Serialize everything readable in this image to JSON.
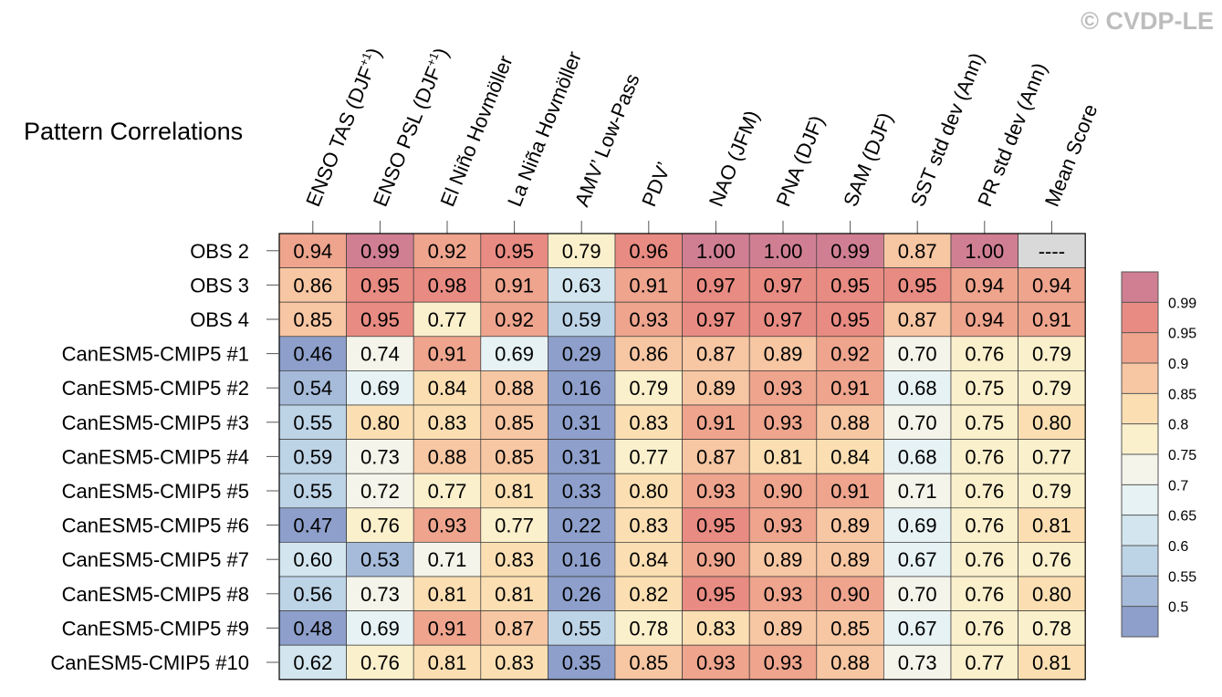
{
  "copyright": "© CVDP-LE",
  "chart_data": {
    "type": "heatmap",
    "title": "Pattern Correlations",
    "columns": [
      {
        "base": "ENSO TAS (DJF",
        "sup": "+1",
        "close": ")"
      },
      {
        "base": "ENSO PSL (DJF",
        "sup": "+1",
        "close": ")"
      },
      {
        "base": "El Niño Hovmöller",
        "sup": "",
        "close": ""
      },
      {
        "base": "La Niña Hovmöller",
        "sup": "",
        "close": ""
      },
      {
        "base": "AMV’ Low-Pass",
        "sup": "",
        "close": ""
      },
      {
        "base": "PDV’",
        "sup": "",
        "close": ""
      },
      {
        "base": "NAO (JFM)",
        "sup": "",
        "close": ""
      },
      {
        "base": "PNA (DJF)",
        "sup": "",
        "close": ""
      },
      {
        "base": "SAM (DJF)",
        "sup": "",
        "close": ""
      },
      {
        "base": "SST std dev (Ann)",
        "sup": "",
        "close": ""
      },
      {
        "base": "PR std dev (Ann)",
        "sup": "",
        "close": ""
      },
      {
        "base": "Mean Score",
        "sup": "",
        "close": ""
      }
    ],
    "rows": [
      {
        "label": "OBS 2",
        "values": [
          "0.94",
          "0.99",
          "0.92",
          "0.95",
          "0.79",
          "0.96",
          "1.00",
          "1.00",
          "0.99",
          "0.87",
          "1.00",
          "----"
        ]
      },
      {
        "label": "OBS 3",
        "values": [
          "0.86",
          "0.95",
          "0.98",
          "0.91",
          "0.63",
          "0.91",
          "0.97",
          "0.97",
          "0.95",
          "0.95",
          "0.94",
          "0.94"
        ]
      },
      {
        "label": "OBS 4",
        "values": [
          "0.85",
          "0.95",
          "0.77",
          "0.92",
          "0.59",
          "0.93",
          "0.97",
          "0.97",
          "0.95",
          "0.87",
          "0.94",
          "0.91"
        ]
      },
      {
        "label": "CanESM5-CMIP5 #1",
        "values": [
          "0.46",
          "0.74",
          "0.91",
          "0.69",
          "0.29",
          "0.86",
          "0.87",
          "0.89",
          "0.92",
          "0.70",
          "0.76",
          "0.79"
        ]
      },
      {
        "label": "CanESM5-CMIP5 #2",
        "values": [
          "0.54",
          "0.69",
          "0.84",
          "0.88",
          "0.16",
          "0.79",
          "0.89",
          "0.93",
          "0.91",
          "0.68",
          "0.75",
          "0.79"
        ]
      },
      {
        "label": "CanESM5-CMIP5 #3",
        "values": [
          "0.55",
          "0.80",
          "0.83",
          "0.85",
          "0.31",
          "0.83",
          "0.91",
          "0.93",
          "0.88",
          "0.70",
          "0.75",
          "0.80"
        ]
      },
      {
        "label": "CanESM5-CMIP5 #4",
        "values": [
          "0.59",
          "0.73",
          "0.88",
          "0.85",
          "0.31",
          "0.77",
          "0.87",
          "0.81",
          "0.84",
          "0.68",
          "0.76",
          "0.77"
        ]
      },
      {
        "label": "CanESM5-CMIP5 #5",
        "values": [
          "0.55",
          "0.72",
          "0.77",
          "0.81",
          "0.33",
          "0.80",
          "0.93",
          "0.90",
          "0.91",
          "0.71",
          "0.76",
          "0.79"
        ]
      },
      {
        "label": "CanESM5-CMIP5 #6",
        "values": [
          "0.47",
          "0.76",
          "0.93",
          "0.77",
          "0.22",
          "0.83",
          "0.95",
          "0.93",
          "0.89",
          "0.69",
          "0.76",
          "0.81"
        ]
      },
      {
        "label": "CanESM5-CMIP5 #7",
        "values": [
          "0.60",
          "0.53",
          "0.71",
          "0.83",
          "0.16",
          "0.84",
          "0.90",
          "0.89",
          "0.89",
          "0.67",
          "0.76",
          "0.76"
        ]
      },
      {
        "label": "CanESM5-CMIP5 #8",
        "values": [
          "0.56",
          "0.73",
          "0.81",
          "0.81",
          "0.26",
          "0.82",
          "0.95",
          "0.93",
          "0.90",
          "0.70",
          "0.76",
          "0.80"
        ]
      },
      {
        "label": "CanESM5-CMIP5 #9",
        "values": [
          "0.48",
          "0.69",
          "0.91",
          "0.87",
          "0.55",
          "0.78",
          "0.83",
          "0.89",
          "0.85",
          "0.67",
          "0.76",
          "0.78"
        ]
      },
      {
        "label": "CanESM5-CMIP5 #10",
        "values": [
          "0.62",
          "0.76",
          "0.81",
          "0.83",
          "0.35",
          "0.85",
          "0.93",
          "0.93",
          "0.88",
          "0.73",
          "0.77",
          "0.81"
        ]
      }
    ],
    "colorbar": {
      "levels": [
        "0.5",
        "0.55",
        "0.6",
        "0.65",
        "0.7",
        "0.75",
        "0.8",
        "0.85",
        "0.9",
        "0.95",
        "0.99"
      ],
      "colors": [
        "#8d9fca",
        "#a6bbd9",
        "#bdd3e6",
        "#d3e6ef",
        "#e6f2f4",
        "#f4f4ea",
        "#fbf0cc",
        "#fbdfb2",
        "#f7c6a2",
        "#eea48d",
        "#e88b82",
        "#d07f93"
      ]
    },
    "missing_color": "#d9d9d9"
  }
}
